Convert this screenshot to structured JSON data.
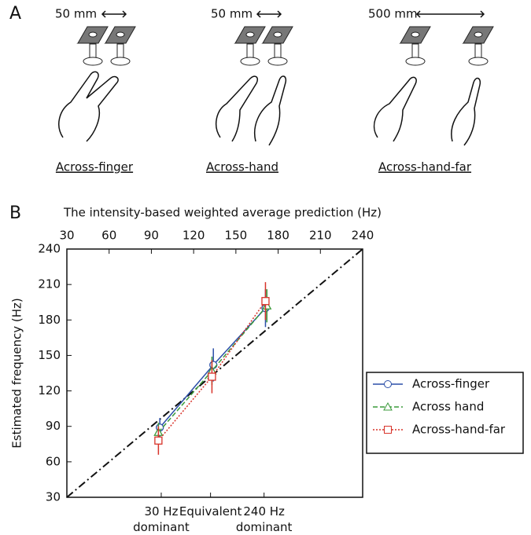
{
  "panel_a": {
    "label": "A",
    "conditions": [
      {
        "distance": "50 mm",
        "name": "Across-finger"
      },
      {
        "distance": "50 mm",
        "name": "Across-hand"
      },
      {
        "distance": "500 mm",
        "name": "Across-hand-far"
      }
    ]
  },
  "panel_b": {
    "label": "B"
  },
  "chart_data": {
    "type": "line",
    "x_label": "The intensity-based weighted average prediction (Hz)",
    "y_label": "Estimated frequency (Hz)",
    "xlim": [
      30,
      240
    ],
    "xticks": [
      30,
      60,
      90,
      120,
      150,
      180,
      210,
      240
    ],
    "ylim": [
      30,
      240
    ],
    "yticks": [
      30,
      60,
      90,
      120,
      150,
      180,
      210,
      240
    ],
    "bottom_labels": [
      {
        "value": 97,
        "label": "30 Hz\ndominant"
      },
      {
        "value": 132,
        "label": "Equivalent"
      },
      {
        "value": 170,
        "label": "240 Hz\ndominant"
      }
    ],
    "identity_line": true,
    "legend": "right",
    "series": [
      {
        "name": "Across-finger",
        "color": "#2b4fa8",
        "marker": "circle",
        "dash": "solid",
        "x": [
          96,
          134,
          171
        ],
        "values": [
          89,
          142,
          190
        ],
        "errors": [
          8,
          14,
          16
        ]
      },
      {
        "name": "Across hand",
        "color": "#3a9a3a",
        "marker": "triangle",
        "dash": "dashed",
        "x": [
          95,
          133,
          172
        ],
        "values": [
          85,
          137,
          192
        ],
        "errors": [
          8,
          12,
          14
        ]
      },
      {
        "name": "Across-hand-far",
        "color": "#d8332a",
        "marker": "square",
        "dash": "dotted",
        "x": [
          95,
          133,
          171
        ],
        "values": [
          78,
          132,
          196
        ],
        "errors": [
          12,
          14,
          16
        ]
      }
    ]
  }
}
